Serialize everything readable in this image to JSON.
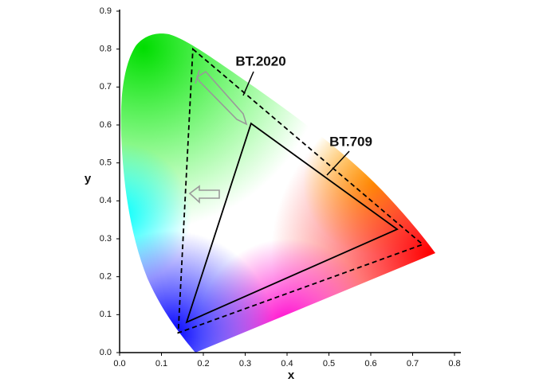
{
  "chart_data": {
    "type": "chromaticity",
    "xlabel": "x",
    "ylabel": "y",
    "xlim": [
      0,
      0.8
    ],
    "ylim": [
      0,
      0.9
    ],
    "xticks": [
      {
        "value": 0,
        "label": "0.0"
      },
      0.1,
      0.2,
      0.3,
      0.4,
      0.5,
      0.6,
      0.7,
      0.8
    ],
    "yticks": [
      {
        "value": 0,
        "label": "0.0"
      },
      0.1,
      0.2,
      0.3,
      0.4,
      0.5,
      0.6,
      0.7,
      0.8,
      0.9
    ],
    "series": [
      {
        "name": "BT.2020",
        "color": "#000000",
        "dashed": true,
        "x": [
          0.175,
          0.724,
          0.14
        ],
        "y": [
          0.8,
          0.285,
          0.052
        ]
      },
      {
        "name": "BT.709",
        "color": "#000000",
        "dashed": false,
        "x": [
          0.314,
          0.663,
          0.16
        ],
        "y": [
          0.604,
          0.325,
          0.08
        ]
      }
    ]
  }
}
